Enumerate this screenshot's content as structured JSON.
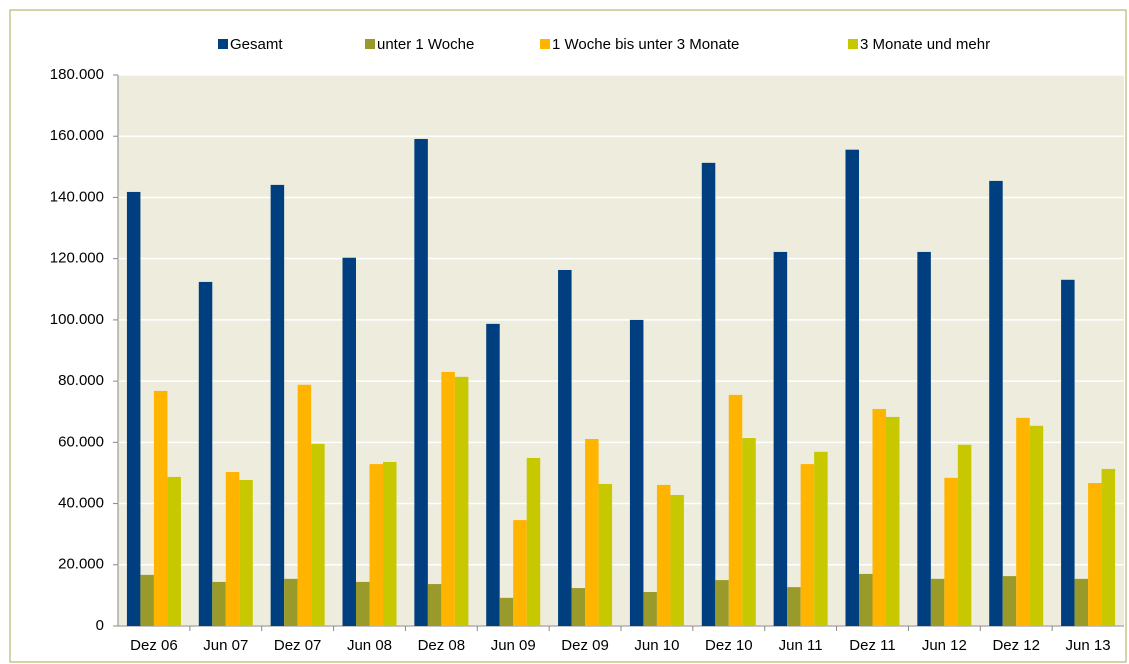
{
  "chart_data": {
    "type": "bar",
    "categories": [
      "Dez 06",
      "Jun 07",
      "Dez 07",
      "Jun 08",
      "Dez 08",
      "Jun 09",
      "Dez 09",
      "Jun 10",
      "Dez 10",
      "Jun 11",
      "Dez 11",
      "Jun 12",
      "Dez 12",
      "Jun 13"
    ],
    "series": [
      {
        "name": "Gesamt",
        "color": "#003f7f",
        "values": [
          141800,
          112400,
          144100,
          120300,
          159100,
          98700,
          116300,
          100000,
          151300,
          122200,
          155600,
          122200,
          145400,
          113100
        ]
      },
      {
        "name": "unter 1 Woche",
        "color": "#9a9a2a",
        "values": [
          16700,
          14400,
          15400,
          14400,
          13700,
          9200,
          12400,
          11100,
          15000,
          12700,
          17000,
          15400,
          16300,
          15400
        ]
      },
      {
        "name": "1 Woche bis unter 3 Monate",
        "color": "#ffb400",
        "values": [
          76800,
          50300,
          78800,
          52900,
          83000,
          34600,
          61100,
          46100,
          75500,
          52900,
          70900,
          48400,
          68000,
          46700
        ]
      },
      {
        "name": "3 Monate und mehr",
        "color": "#c8c800",
        "values": [
          48700,
          47700,
          59500,
          53600,
          81400,
          54900,
          46400,
          42800,
          61400,
          56900,
          68300,
          59200,
          65400,
          51300
        ]
      }
    ],
    "ylim": [
      0,
      180000
    ],
    "yticks": [
      0,
      {
        "value": 20000,
        "label": "20.000"
      },
      {
        "value": 40000,
        "label": "40.000"
      },
      {
        "value": 60000,
        "label": "60.000"
      },
      {
        "value": 80000,
        "label": "80.000"
      },
      {
        "value": 100000,
        "label": "100.000"
      },
      {
        "value": 120000,
        "label": "120.000"
      },
      {
        "value": 140000,
        "label": "140.000"
      },
      {
        "value": 160000,
        "label": "160.000"
      },
      {
        "value": 180000,
        "label": "180.000"
      }
    ],
    "grid": true,
    "legend": "top",
    "background": "#eeecdc"
  }
}
